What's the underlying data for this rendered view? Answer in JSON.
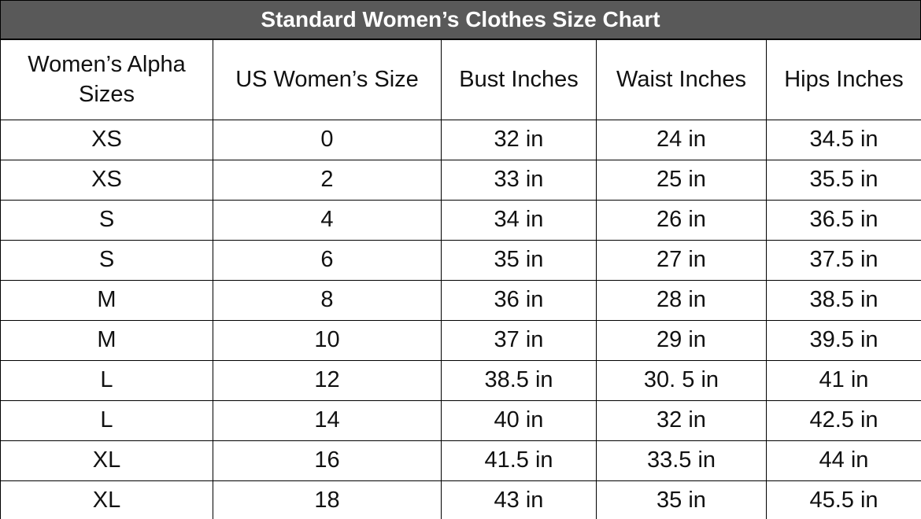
{
  "header": {
    "title": "Standard Women’s Clothes Size Chart"
  },
  "table": {
    "columns": [
      "Women’s Alpha Sizes",
      "US Women’s Size",
      "Bust Inches",
      "Waist Inches",
      "Hips Inches"
    ],
    "rows": [
      [
        "XS",
        "0",
        "32 in",
        "24 in",
        "34.5 in"
      ],
      [
        "XS",
        "2",
        "33 in",
        "25 in",
        "35.5 in"
      ],
      [
        "S",
        "4",
        "34 in",
        "26 in",
        "36.5 in"
      ],
      [
        "S",
        "6",
        "35 in",
        "27 in",
        "37.5 in"
      ],
      [
        "M",
        "8",
        "36 in",
        "28 in",
        "38.5 in"
      ],
      [
        "M",
        "10",
        "37 in",
        "29 in",
        "39.5 in"
      ],
      [
        "L",
        "12",
        "38.5 in",
        "30. 5 in",
        "41 in"
      ],
      [
        "L",
        "14",
        "40 in",
        "32 in",
        "42.5 in"
      ],
      [
        "XL",
        "16",
        "41.5 in",
        "33.5 in",
        "44 in"
      ],
      [
        "XL",
        "18",
        "43 in",
        "35 in",
        "45.5 in"
      ]
    ]
  }
}
